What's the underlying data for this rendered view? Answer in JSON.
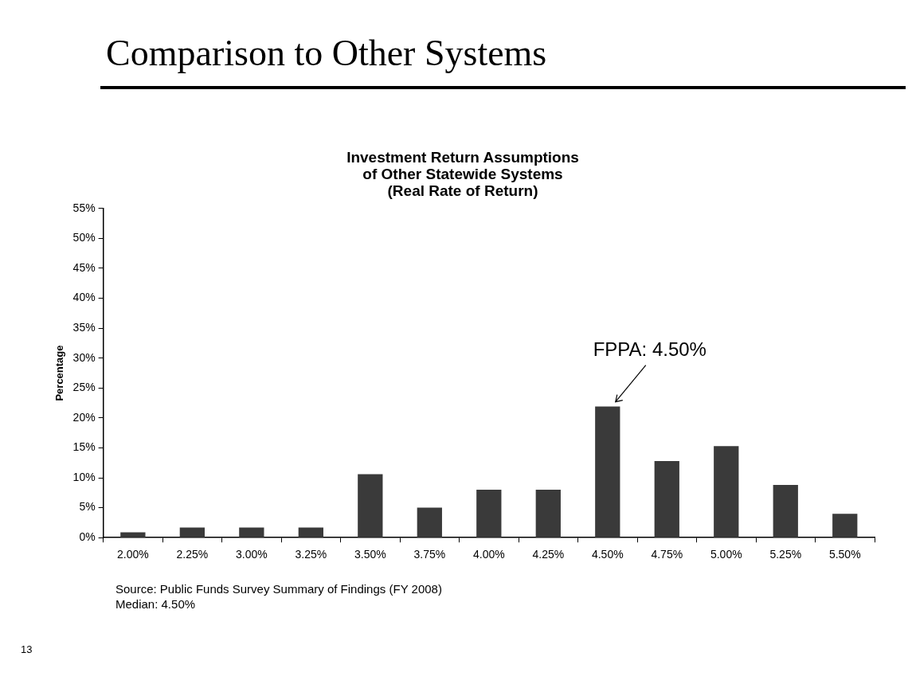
{
  "chart_data": {
    "type": "bar",
    "title": "Comparison to Other Systems",
    "subtitle": "Investment Return Assumptions\nof Other Statewide Systems\n(Real Rate of Return)",
    "ylabel": "Percentage",
    "categories": [
      "2.00%",
      "2.25%",
      "3.00%",
      "3.25%",
      "3.50%",
      "3.75%",
      "4.00%",
      "4.25%",
      "4.50%",
      "4.75%",
      "5.00%",
      "5.25%",
      "5.50%"
    ],
    "values": [
      0.9,
      1.7,
      1.7,
      1.7,
      10.6,
      5.0,
      8.0,
      8.0,
      21.9,
      12.8,
      15.3,
      8.8,
      4.0
    ],
    "color": "#3a3a3a",
    "ylim": [
      0,
      55
    ],
    "yticks": [
      {
        "value": 0,
        "label": "0%"
      },
      {
        "value": 5,
        "label": "5%"
      },
      {
        "value": 10,
        "label": "10%"
      },
      {
        "value": 15,
        "label": "15%"
      },
      {
        "value": 20,
        "label": "20%"
      },
      {
        "value": 25,
        "label": "25%"
      },
      {
        "value": 30,
        "label": "30%"
      },
      {
        "value": 35,
        "label": "35%"
      },
      {
        "value": 40,
        "label": "40%"
      },
      {
        "value": 45,
        "label": "45%"
      },
      {
        "value": 50,
        "label": "50%"
      },
      {
        "value": 55,
        "label": "55%"
      }
    ],
    "grid": false,
    "legend": false,
    "annotations": [
      {
        "text": "FPPA: 4.50%",
        "x": "4.50%",
        "y": 21.9
      },
      "Source: Public Funds Survey Summary of Findings (FY 2008)",
      "Median: 4.50%",
      "13"
    ]
  }
}
